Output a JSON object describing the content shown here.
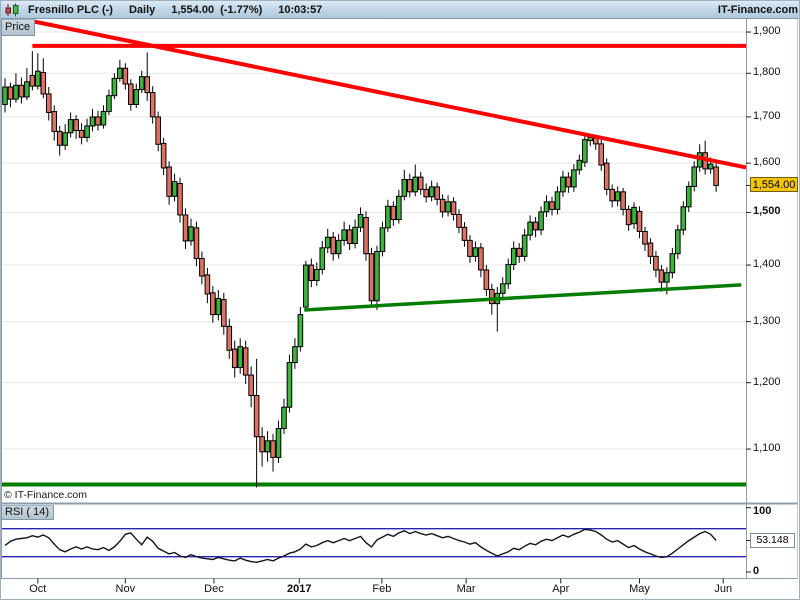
{
  "title_bar": {
    "symbol": "Fresnillo PLC (-)",
    "timeframe": "Daily",
    "last_price": "1,554.00",
    "change": "(-1.77%)",
    "time": "10:03:57",
    "brand": "IT-Finance.com"
  },
  "price_panel": {
    "tab_label": "Price",
    "watermark": "© IT-Finance.com",
    "last_price_label": "1,554.00",
    "scale": "log",
    "y_ticks": [
      {
        "value": 1900,
        "label": "1,900",
        "bold": false
      },
      {
        "value": 1800,
        "label": "1,800",
        "bold": false
      },
      {
        "value": 1700,
        "label": "1,700",
        "bold": false
      },
      {
        "value": 1600,
        "label": "1,600",
        "bold": false
      },
      {
        "value": 1500,
        "label": "1,500",
        "bold": true
      },
      {
        "value": 1400,
        "label": "1,400",
        "bold": false
      },
      {
        "value": 1300,
        "label": "1,300",
        "bold": false
      },
      {
        "value": 1200,
        "label": "1,200",
        "bold": false
      },
      {
        "value": 1100,
        "label": "1,100",
        "bold": false
      }
    ]
  },
  "rsi_panel": {
    "tab_label": "RSI ( 14)",
    "period": 14,
    "upper_level": 70,
    "lower_level": 30,
    "current": 53.148,
    "current_label": "53.148",
    "y_tick_top": "100",
    "y_tick_bottom": "0"
  },
  "x_axis": {
    "months": [
      {
        "label": "Oct",
        "index": 6,
        "bold": false
      },
      {
        "label": "Nov",
        "index": 22,
        "bold": false
      },
      {
        "label": "Dec",
        "index": 38.2,
        "bold": false
      },
      {
        "label": "2017",
        "index": 53.8,
        "bold": true
      },
      {
        "label": "Feb",
        "index": 68.9,
        "bold": false
      },
      {
        "label": "Mar",
        "index": 84.3,
        "bold": false
      },
      {
        "label": "Apr",
        "index": 101.6,
        "bold": false
      },
      {
        "label": "May",
        "index": 116,
        "bold": false
      },
      {
        "label": "Jun",
        "index": 131.3,
        "bold": false
      }
    ]
  },
  "chart_data": {
    "type": "candlestick",
    "title": "Fresnillo PLC (-) Daily",
    "symbol": "Fresnillo PLC",
    "interval": "Daily",
    "last_close": 1554.0,
    "change_pct": -1.77,
    "quote_time": "10:03:57",
    "scale": "log",
    "price_range": [
      1040,
      1940
    ],
    "colors": {
      "up": "#3cb43c",
      "down": "#dd7263",
      "outline": "#000000",
      "trend_red": "#fe0000",
      "trend_green": "#007d00",
      "rsi_line": "#15151f",
      "rsi_levels": "#2525b5",
      "grid": "#e7e7e7",
      "axis_tick": "#222222",
      "chrome": "#8d9dab",
      "price_tag_bg": "#f2c50f"
    },
    "candles": [
      [
        1728,
        1788,
        1710,
        1768
      ],
      [
        1768,
        1778,
        1722,
        1740
      ],
      [
        1740,
        1800,
        1732,
        1772
      ],
      [
        1772,
        1790,
        1730,
        1745
      ],
      [
        1745,
        1812,
        1738,
        1780
      ],
      [
        1795,
        1853,
        1760,
        1770
      ],
      [
        1770,
        1848,
        1762,
        1805
      ],
      [
        1802,
        1836,
        1742,
        1752
      ],
      [
        1752,
        1768,
        1692,
        1710
      ],
      [
        1712,
        1726,
        1648,
        1668
      ],
      [
        1668,
        1680,
        1616,
        1638
      ],
      [
        1638,
        1684,
        1628,
        1665
      ],
      [
        1665,
        1710,
        1655,
        1694
      ],
      [
        1694,
        1704,
        1652,
        1670
      ],
      [
        1670,
        1686,
        1640,
        1655
      ],
      [
        1655,
        1696,
        1645,
        1680
      ],
      [
        1680,
        1718,
        1668,
        1700
      ],
      [
        1700,
        1714,
        1670,
        1682
      ],
      [
        1682,
        1726,
        1674,
        1712
      ],
      [
        1712,
        1762,
        1704,
        1748
      ],
      [
        1748,
        1800,
        1740,
        1788
      ],
      [
        1788,
        1832,
        1780,
        1812
      ],
      [
        1812,
        1824,
        1762,
        1775
      ],
      [
        1775,
        1786,
        1714,
        1728
      ],
      [
        1728,
        1776,
        1720,
        1762
      ],
      [
        1762,
        1806,
        1754,
        1792
      ],
      [
        1792,
        1850,
        1736,
        1755
      ],
      [
        1755,
        1770,
        1685,
        1700
      ],
      [
        1700,
        1712,
        1625,
        1640
      ],
      [
        1642,
        1654,
        1575,
        1590
      ],
      [
        1592,
        1604,
        1515,
        1532
      ],
      [
        1532,
        1578,
        1522,
        1562
      ],
      [
        1558,
        1570,
        1480,
        1495
      ],
      [
        1495,
        1508,
        1430,
        1445
      ],
      [
        1445,
        1488,
        1436,
        1472
      ],
      [
        1470,
        1482,
        1398,
        1412
      ],
      [
        1412,
        1425,
        1365,
        1380
      ],
      [
        1382,
        1395,
        1332,
        1348
      ],
      [
        1350,
        1362,
        1298,
        1312
      ],
      [
        1312,
        1355,
        1302,
        1340
      ],
      [
        1338,
        1350,
        1278,
        1292
      ],
      [
        1292,
        1305,
        1238,
        1252
      ],
      [
        1254,
        1268,
        1208,
        1224
      ],
      [
        1224,
        1272,
        1214,
        1258
      ],
      [
        1256,
        1268,
        1198,
        1212
      ],
      [
        1212,
        1226,
        1162,
        1180
      ],
      [
        1180,
        1238,
        1046,
        1118
      ],
      [
        1118,
        1132,
        1075,
        1096
      ],
      [
        1096,
        1126,
        1082,
        1112
      ],
      [
        1112,
        1122,
        1068,
        1088
      ],
      [
        1088,
        1142,
        1080,
        1130
      ],
      [
        1130,
        1175,
        1122,
        1162
      ],
      [
        1162,
        1245,
        1154,
        1232
      ],
      [
        1232,
        1272,
        1222,
        1258
      ],
      [
        1258,
        1325,
        1250,
        1312
      ],
      [
        1325,
        1408,
        1318,
        1400
      ],
      [
        1400,
        1412,
        1360,
        1372
      ],
      [
        1372,
        1405,
        1362,
        1392
      ],
      [
        1392,
        1445,
        1383,
        1432
      ],
      [
        1432,
        1468,
        1422,
        1452
      ],
      [
        1452,
        1462,
        1408,
        1421
      ],
      [
        1421,
        1458,
        1412,
        1446
      ],
      [
        1446,
        1482,
        1436,
        1466
      ],
      [
        1466,
        1476,
        1428,
        1440
      ],
      [
        1440,
        1486,
        1431,
        1471
      ],
      [
        1471,
        1510,
        1462,
        1496
      ],
      [
        1490,
        1502,
        1408,
        1421
      ],
      [
        1421,
        1432,
        1326,
        1336
      ],
      [
        1336,
        1436,
        1320,
        1425
      ],
      [
        1425,
        1482,
        1416,
        1470
      ],
      [
        1470,
        1525,
        1462,
        1512
      ],
      [
        1512,
        1522,
        1474,
        1486
      ],
      [
        1486,
        1545,
        1478,
        1532
      ],
      [
        1532,
        1586,
        1524,
        1566
      ],
      [
        1566,
        1578,
        1530,
        1541
      ],
      [
        1541,
        1597,
        1532,
        1571
      ],
      [
        1571,
        1582,
        1535,
        1546
      ],
      [
        1546,
        1558,
        1520,
        1531
      ],
      [
        1531,
        1564,
        1522,
        1551
      ],
      [
        1551,
        1560,
        1514,
        1526
      ],
      [
        1526,
        1536,
        1490,
        1501
      ],
      [
        1501,
        1534,
        1492,
        1521
      ],
      [
        1521,
        1530,
        1484,
        1496
      ],
      [
        1496,
        1506,
        1460,
        1471
      ],
      [
        1471,
        1481,
        1434,
        1446
      ],
      [
        1446,
        1456,
        1404,
        1416
      ],
      [
        1416,
        1444,
        1406,
        1432
      ],
      [
        1432,
        1441,
        1378,
        1391
      ],
      [
        1391,
        1400,
        1344,
        1356
      ],
      [
        1356,
        1366,
        1312,
        1331
      ],
      [
        1331,
        1360,
        1283,
        1349
      ],
      [
        1349,
        1378,
        1340,
        1366
      ],
      [
        1366,
        1412,
        1357,
        1401
      ],
      [
        1401,
        1444,
        1391,
        1431
      ],
      [
        1431,
        1441,
        1404,
        1416
      ],
      [
        1416,
        1468,
        1407,
        1456
      ],
      [
        1456,
        1494,
        1446,
        1481
      ],
      [
        1481,
        1491,
        1452,
        1466
      ],
      [
        1466,
        1512,
        1456,
        1501
      ],
      [
        1501,
        1534,
        1491,
        1521
      ],
      [
        1521,
        1531,
        1494,
        1506
      ],
      [
        1506,
        1552,
        1496,
        1541
      ],
      [
        1541,
        1584,
        1531,
        1571
      ],
      [
        1571,
        1581,
        1539,
        1551
      ],
      [
        1551,
        1598,
        1541,
        1586
      ],
      [
        1586,
        1618,
        1576,
        1606
      ],
      [
        1602,
        1658,
        1592,
        1650
      ],
      [
        1648,
        1662,
        1636,
        1655
      ],
      [
        1655,
        1660,
        1628,
        1641
      ],
      [
        1641,
        1650,
        1584,
        1596
      ],
      [
        1600,
        1610,
        1534,
        1546
      ],
      [
        1546,
        1556,
        1510,
        1523
      ],
      [
        1523,
        1552,
        1512,
        1541
      ],
      [
        1541,
        1549,
        1494,
        1506
      ],
      [
        1506,
        1514,
        1464,
        1476
      ],
      [
        1478,
        1520,
        1468,
        1510
      ],
      [
        1502,
        1512,
        1450,
        1463
      ],
      [
        1463,
        1472,
        1426,
        1439
      ],
      [
        1441,
        1450,
        1402,
        1416
      ],
      [
        1416,
        1426,
        1378,
        1391
      ],
      [
        1391,
        1400,
        1352,
        1369
      ],
      [
        1369,
        1396,
        1347,
        1386
      ],
      [
        1386,
        1432,
        1376,
        1421
      ],
      [
        1421,
        1476,
        1411,
        1466
      ],
      [
        1466,
        1522,
        1456,
        1511
      ],
      [
        1511,
        1562,
        1501,
        1552
      ],
      [
        1552,
        1604,
        1542,
        1592
      ],
      [
        1592,
        1640,
        1582,
        1622
      ],
      [
        1622,
        1648,
        1576,
        1588
      ],
      [
        1588,
        1612,
        1578,
        1598
      ],
      [
        1592,
        1602,
        1541,
        1554
      ]
    ],
    "trendlines": [
      {
        "name": "resistance-horizontal",
        "color": "#fe0000",
        "width": 4,
        "index1": 5,
        "index2": 135.5,
        "price1": 1866,
        "price2": 1866
      },
      {
        "name": "resistance-descending",
        "color": "#fe0000",
        "width": 4,
        "index1": 4.4,
        "index2": 135.5,
        "price1": 1929,
        "price2": 1591
      },
      {
        "name": "support-rising",
        "color": "#007d00",
        "width": 3.5,
        "index1": 54.7,
        "index2": 134.6,
        "price1": 1320,
        "price2": 1364
      },
      {
        "name": "support-horizontal",
        "color": "#007d00",
        "width": 4,
        "index1": -0.7,
        "index2": 135.5,
        "price1": 1050,
        "price2": 1050
      }
    ],
    "rsi": {
      "period": 14,
      "levels": [
        70,
        30
      ],
      "current": 53.148,
      "values": [
        46,
        52,
        55,
        56,
        57,
        60,
        58,
        61,
        57,
        48,
        40,
        37,
        41,
        44,
        41,
        44,
        41,
        40,
        43,
        39,
        44,
        52,
        62,
        64,
        55,
        47,
        58,
        52,
        42,
        38,
        34,
        36,
        31,
        29,
        33,
        30,
        28,
        27,
        26,
        29,
        27,
        25,
        24,
        28,
        25,
        23,
        22,
        24,
        26,
        24,
        28,
        31,
        35,
        37,
        41,
        48,
        44,
        46,
        50,
        53,
        50,
        53,
        56,
        53,
        56,
        59,
        50,
        44,
        54,
        58,
        62,
        59,
        64,
        67,
        63,
        66,
        63,
        61,
        63,
        60,
        57,
        59,
        56,
        53,
        51,
        48,
        50,
        44,
        39,
        35,
        31,
        34,
        37,
        42,
        40,
        45,
        49,
        47,
        52,
        55,
        53,
        57,
        61,
        58,
        62,
        65,
        69,
        68,
        66,
        61,
        55,
        51,
        53,
        48,
        43,
        46,
        41,
        37,
        34,
        31,
        29,
        30,
        35,
        41,
        47,
        53,
        58,
        63,
        66,
        62,
        53.148
      ]
    }
  }
}
